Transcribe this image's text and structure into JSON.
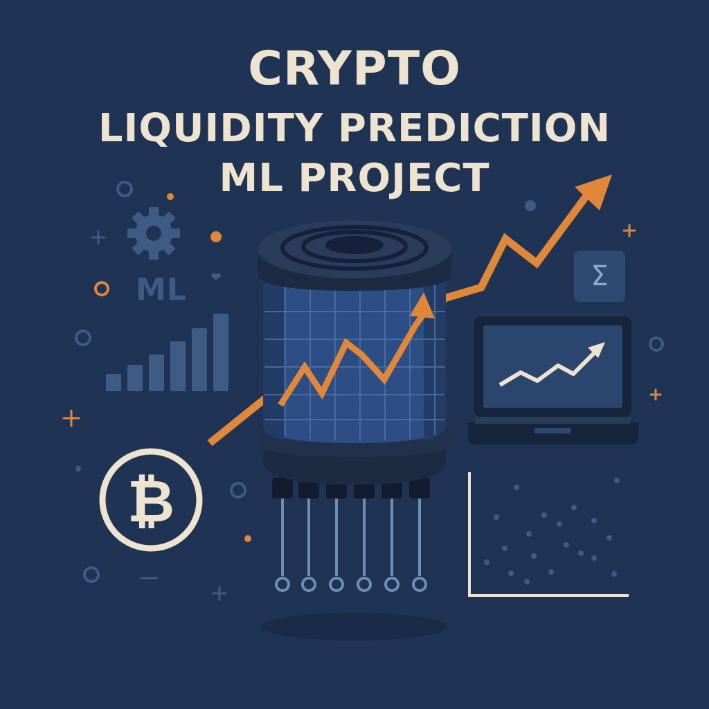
{
  "title": {
    "line1": "CRYPTO",
    "line2": "LIQUIDITY PREDICTION",
    "line3": "ML PROJECT"
  },
  "badges": {
    "ml": "ML",
    "sigma": "Σ",
    "bitcoin": "₿"
  },
  "icons": [
    "gear-icon",
    "bitcoin-icon",
    "sigma-icon",
    "laptop-icon",
    "database-cylinder-icon",
    "bar-chart-icon",
    "scatter-plot-icon",
    "trend-arrow-icon"
  ],
  "colors": {
    "background": "#1f3354",
    "title": "#eee3cf",
    "accent_orange": "#e0873a",
    "muted_blue": "#3e5b84",
    "cylinder_body": "#2d4e84",
    "cylinder_dark": "#1c2a42"
  }
}
